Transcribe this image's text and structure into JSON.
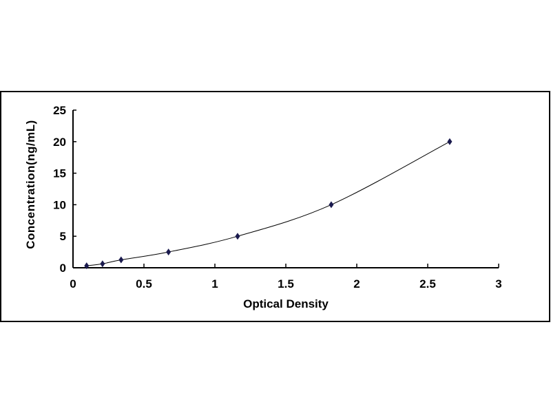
{
  "chart_data": {
    "type": "scatter",
    "title": "",
    "xlabel": "Optical Density",
    "ylabel": "Concentration(ng/mL)",
    "xlim": [
      0,
      3
    ],
    "ylim": [
      0,
      25
    ],
    "xticks": [
      "0",
      "0.5",
      "1",
      "1.5",
      "2",
      "2.5",
      "3"
    ],
    "yticks": [
      "0",
      "5",
      "10",
      "15",
      "20",
      "25"
    ],
    "grid": false,
    "legend": "none",
    "marker": "diamond",
    "marker_color": "#1a1a4e",
    "line_color": "#000000",
    "trendline": "smooth curve",
    "x": [
      0.096,
      0.208,
      0.339,
      0.673,
      1.16,
      1.82,
      2.655
    ],
    "y": [
      0.312,
      0.625,
      1.25,
      2.5,
      5,
      10,
      20
    ]
  }
}
